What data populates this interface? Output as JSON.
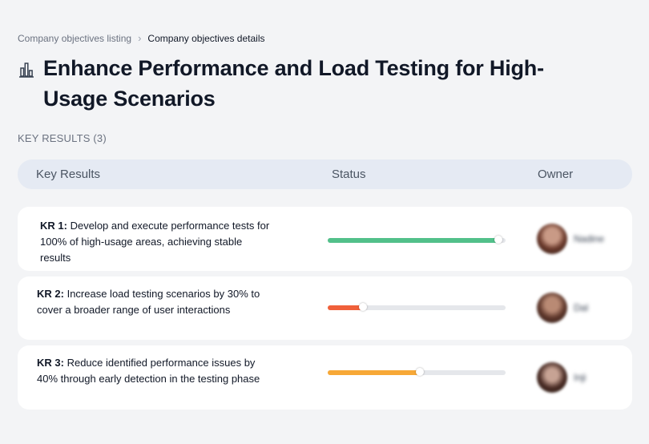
{
  "breadcrumb": {
    "parent": "Company objectives listing",
    "separator": "›",
    "current": "Company objectives details"
  },
  "page": {
    "title": "Enhance Performance and Load Testing for High-Usage Scenarios",
    "title_icon": "bar-chart-icon"
  },
  "key_results_label": "KEY RESULTS (3)",
  "table": {
    "headers": {
      "key_results": "Key Results",
      "status": "Status",
      "owner": "Owner"
    }
  },
  "key_results": [
    {
      "label": "KR 1:",
      "text": "Develop and execute performance tests for 100% of high-usage areas, achieving stable results",
      "progress": 0.96,
      "color": "#52c08a",
      "owner": "Nadine"
    },
    {
      "label": "KR 2:",
      "text": "Increase load testing scenarios by 30% to cover a broader range of user interactions",
      "progress": 0.2,
      "color": "#f0603a",
      "owner": "Dal"
    },
    {
      "label": "KR 3:",
      "text": "Reduce identified performance issues by 40% through early detection in the testing phase",
      "progress": 0.52,
      "color": "#f7a837",
      "owner": "Inji"
    }
  ]
}
